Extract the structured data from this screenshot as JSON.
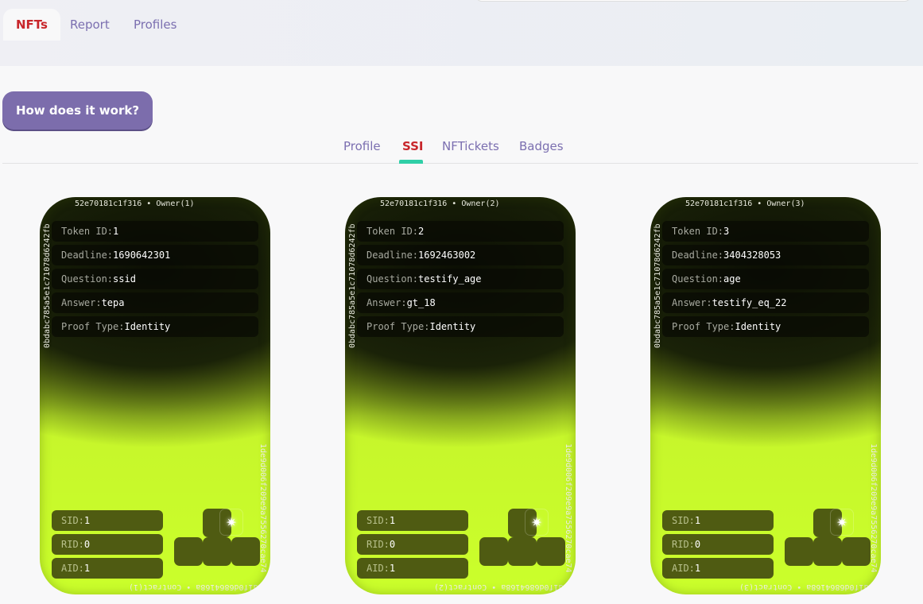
{
  "top_tabs": [
    {
      "label": "NFTs",
      "active": true
    },
    {
      "label": "Report"
    },
    {
      "label": "Profiles"
    }
  ],
  "how_button": "How does it work?",
  "sub_tabs": [
    {
      "label": "Profile"
    },
    {
      "label": "SSI",
      "active": true
    },
    {
      "label": "NFTickets"
    },
    {
      "label": "Badges"
    }
  ],
  "colors": {
    "accent": "#7c6dac",
    "active_tab": "#c8262b",
    "indicator": "#2fcfa7",
    "card_lime": "#cbff2b"
  },
  "cards": [
    {
      "owner_hash": "0bdabc785a5e1c71078d6242fb52e70181c1f316",
      "owner_label": "• Owner(1)",
      "contract_hash": "1de9d006f209e9a7556270cae74d1f0d6864168a",
      "contract_label": "• Contract(1)",
      "fields": [
        {
          "k": "Token ID:",
          "v": "1"
        },
        {
          "k": "Deadline:",
          "v": "1690642301"
        },
        {
          "k": "Question:",
          "v": "ssid"
        },
        {
          "k": "Answer:",
          "v": "tepa"
        },
        {
          "k": "Proof Type:",
          "v": "Identity"
        }
      ],
      "ids": [
        {
          "k": "SID:",
          "v": "1"
        },
        {
          "k": "RID:",
          "v": "0"
        },
        {
          "k": "AID:",
          "v": "1"
        }
      ]
    },
    {
      "owner_hash": "0bdabc785a5e1c71078d6242fb52e70181c1f316",
      "owner_label": "• Owner(2)",
      "contract_hash": "1de9d006f209e9a7556270cae74d1f0d6864168a",
      "contract_label": "• Contract(2)",
      "fields": [
        {
          "k": "Token ID:",
          "v": "2"
        },
        {
          "k": "Deadline:",
          "v": "1692463002"
        },
        {
          "k": "Question:",
          "v": "testify_age"
        },
        {
          "k": "Answer:",
          "v": "gt_18"
        },
        {
          "k": "Proof Type:",
          "v": "Identity"
        }
      ],
      "ids": [
        {
          "k": "SID:",
          "v": "1"
        },
        {
          "k": "RID:",
          "v": "0"
        },
        {
          "k": "AID:",
          "v": "1"
        }
      ]
    },
    {
      "owner_hash": "0bdabc785a5e1c71078d6242fb52e70181c1f316",
      "owner_label": "• Owner(3)",
      "contract_hash": "1de9d006f209e9a7556270cae74d1f0d6864168a",
      "contract_label": "• Contract(3)",
      "fields": [
        {
          "k": "Token ID:",
          "v": "3"
        },
        {
          "k": "Deadline:",
          "v": "3404328053"
        },
        {
          "k": "Question:",
          "v": "age"
        },
        {
          "k": "Answer:",
          "v": "testify_eq_22"
        },
        {
          "k": "Proof Type:",
          "v": "Identity"
        }
      ],
      "ids": [
        {
          "k": "SID:",
          "v": "1"
        },
        {
          "k": "RID:",
          "v": "0"
        },
        {
          "k": "AID:",
          "v": "1"
        }
      ]
    }
  ]
}
